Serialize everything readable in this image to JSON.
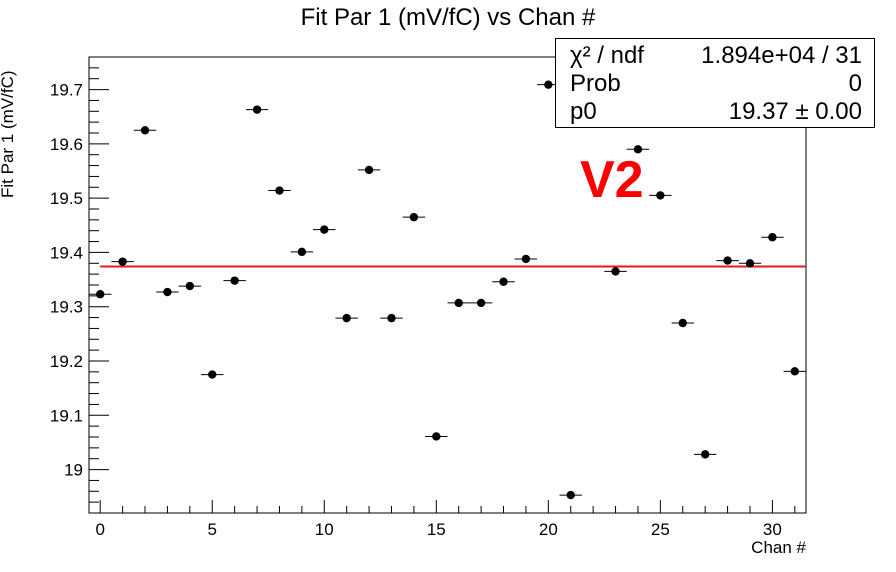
{
  "title": "Fit Par 1 (mV/fC) vs Chan #",
  "stats": {
    "rows": [
      {
        "key": "χ² / ndf",
        "value": "1.894e+04 / 31"
      },
      {
        "key": "Prob",
        "value": "0"
      },
      {
        "key": "p0",
        "value": "19.37 ± 0.00"
      }
    ]
  },
  "annotation": "V2",
  "colors": {
    "points": "#000000",
    "fit_line": "#e31a1c",
    "annotation": "#ff0000"
  },
  "chart_data": {
    "type": "scatter",
    "title": "Fit Par 1 (mV/fC) vs Chan #",
    "xlabel": "Chan #",
    "ylabel": "Fit Par 1 (mV/fC)",
    "xlim": [
      -0.5,
      31.5
    ],
    "ylim": [
      18.92,
      19.76
    ],
    "xticks": [
      0,
      5,
      10,
      15,
      20,
      25,
      30
    ],
    "yticks": [
      19,
      19.1,
      19.2,
      19.3,
      19.4,
      19.5,
      19.6,
      19.7
    ],
    "ytick_labels": [
      "19",
      "19.1",
      "19.2",
      "19.3",
      "19.4",
      "19.5",
      "19.6",
      "19.7"
    ],
    "x": [
      0,
      1,
      2,
      3,
      4,
      5,
      6,
      7,
      8,
      9,
      10,
      11,
      12,
      13,
      14,
      15,
      16,
      17,
      18,
      19,
      20,
      21,
      22,
      23,
      24,
      25,
      26,
      27,
      28,
      29,
      30,
      31
    ],
    "y": [
      19.323,
      19.383,
      19.625,
      19.327,
      19.338,
      19.175,
      19.348,
      19.663,
      19.514,
      19.401,
      19.442,
      19.279,
      19.552,
      19.279,
      19.465,
      19.061,
      19.307,
      19.307,
      19.346,
      19.388,
      19.709,
      18.953,
      null,
      19.365,
      19.59,
      19.505,
      19.27,
      19.028,
      19.385,
      19.38,
      19.428,
      19.181
    ],
    "fit": {
      "p0": 19.374
    },
    "legend": "top-right"
  }
}
